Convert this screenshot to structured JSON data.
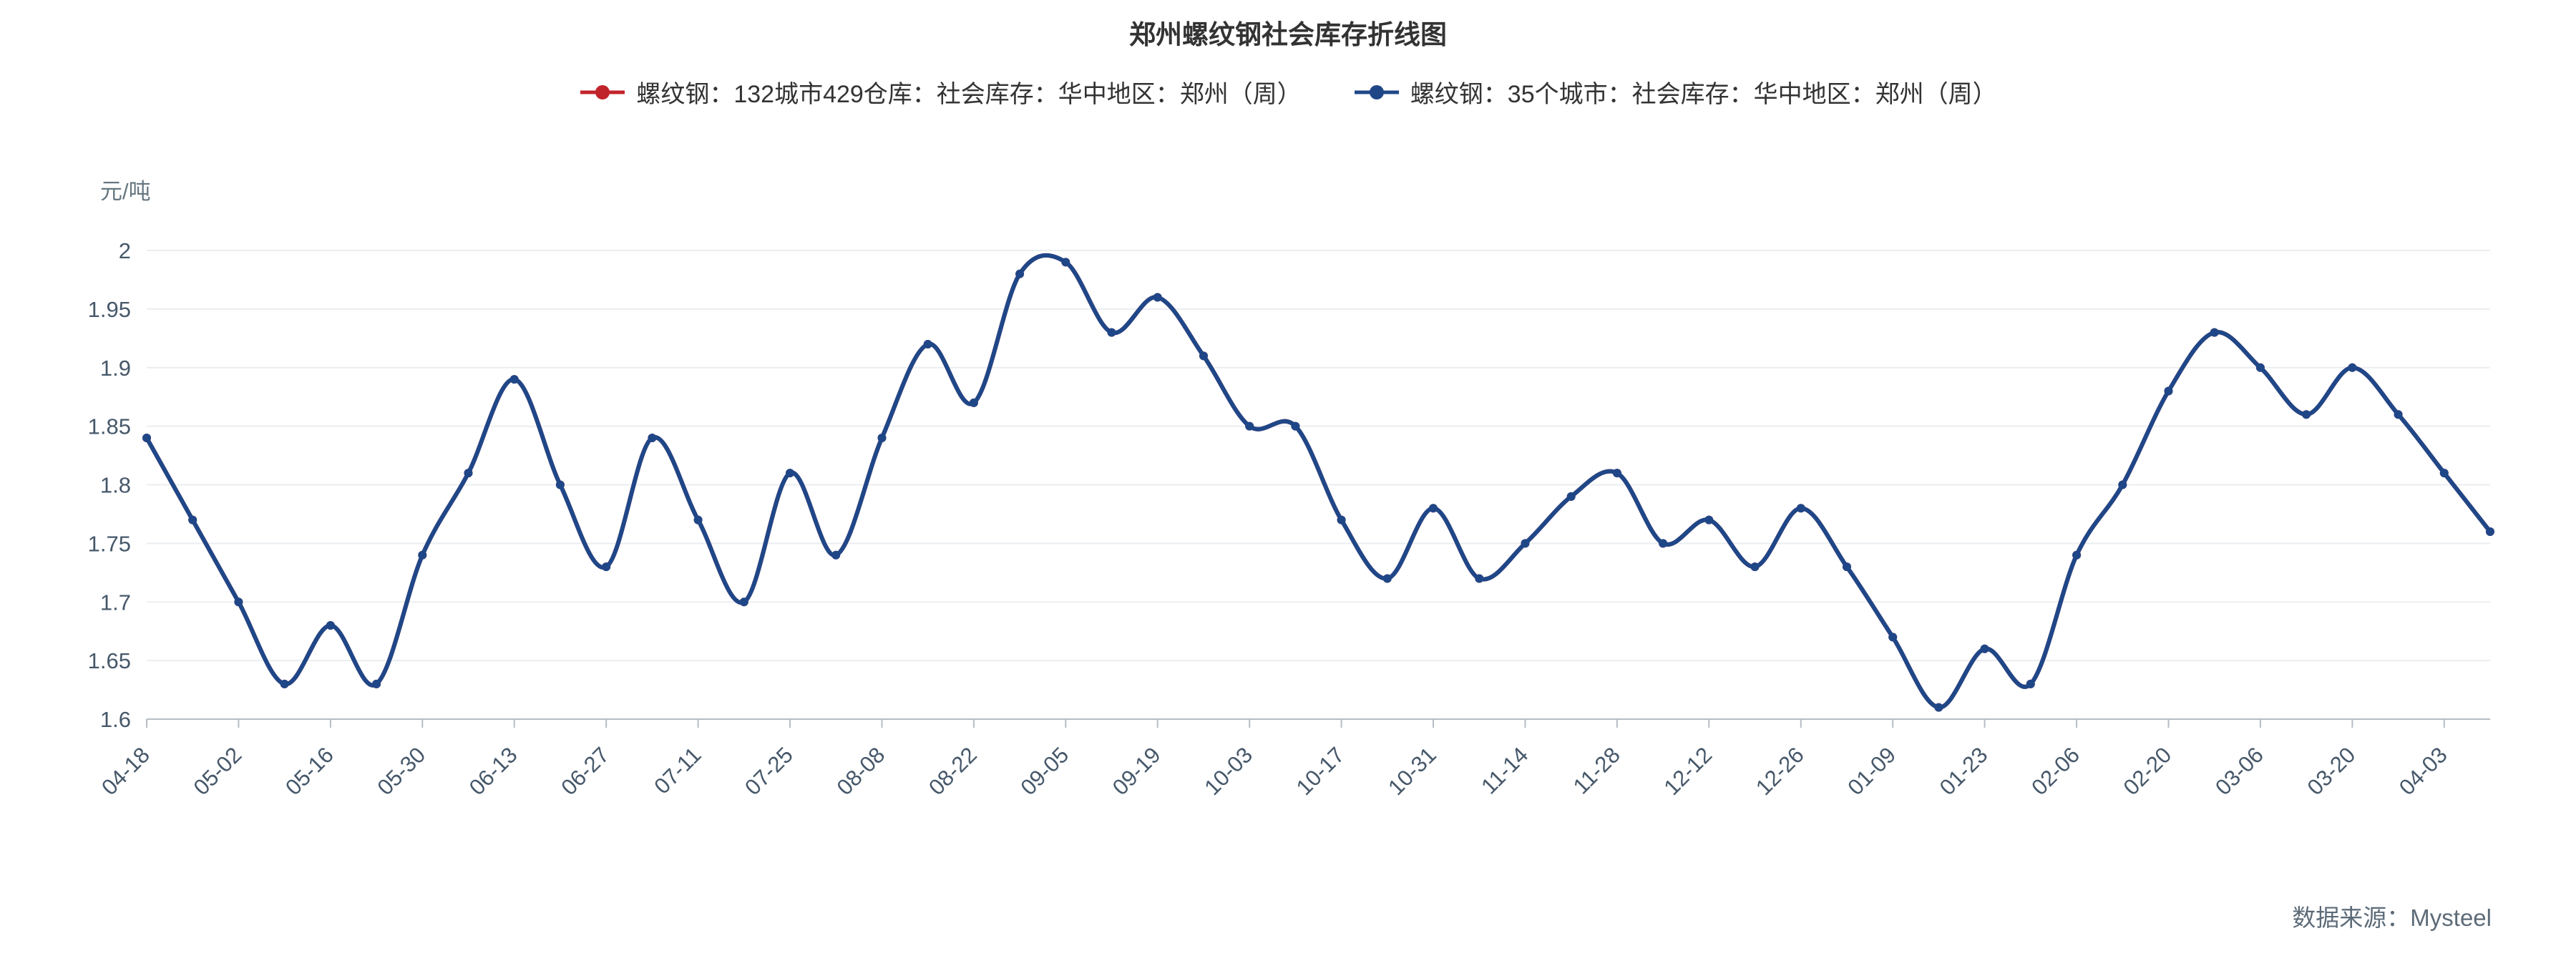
{
  "header": {
    "title": "郑州螺纹钢社会库存折线图"
  },
  "footer": {
    "source": "数据来源：Mysteel"
  },
  "chart_data": {
    "type": "line",
    "title": "郑州螺纹钢社会库存折线图",
    "y_unit": "元/吨",
    "ylim": [
      1.6,
      2.0
    ],
    "y_ticks": [
      1.6,
      1.65,
      1.7,
      1.75,
      1.8,
      1.85,
      1.9,
      1.95,
      2
    ],
    "x_tick_labels": [
      "04-18",
      "05-02",
      "05-16",
      "05-30",
      "06-13",
      "06-27",
      "07-11",
      "07-25",
      "08-08",
      "08-22",
      "09-05",
      "09-19",
      "10-03",
      "10-17",
      "10-31",
      "11-14",
      "11-28",
      "12-12",
      "12-26",
      "01-09",
      "01-23",
      "02-06",
      "02-20",
      "03-06",
      "03-20",
      "04-03"
    ],
    "tick_every": 2,
    "smooth": true,
    "grid": true,
    "legend_position": "top",
    "series": [
      {
        "name": "螺纹钢：132城市429仓库：社会库存：华中地区：郑州（周）",
        "color": "#c1232b",
        "values": [
          1.84,
          1.77,
          1.7,
          1.63,
          1.68,
          1.63,
          1.74,
          1.81,
          1.89,
          1.8,
          1.73,
          1.84,
          1.77,
          1.7,
          1.81,
          1.74,
          1.84,
          1.92,
          1.87,
          1.98,
          1.99,
          1.93,
          1.96,
          1.91,
          1.85,
          1.85,
          1.77,
          1.72,
          1.78,
          1.72,
          1.75,
          1.79,
          1.81,
          1.75,
          1.77,
          1.73,
          1.78,
          1.73,
          1.67,
          1.61,
          1.66,
          1.63,
          1.74,
          1.8,
          1.88,
          1.93,
          1.9,
          1.86,
          1.9,
          1.86,
          1.81,
          1.76
        ]
      },
      {
        "name": "螺纹钢：35个城市：社会库存：华中地区：郑州（周）",
        "color": "#1f4788",
        "values": [
          1.84,
          1.77,
          1.7,
          1.63,
          1.68,
          1.63,
          1.74,
          1.81,
          1.89,
          1.8,
          1.73,
          1.84,
          1.77,
          1.7,
          1.81,
          1.74,
          1.84,
          1.92,
          1.87,
          1.98,
          1.99,
          1.93,
          1.96,
          1.91,
          1.85,
          1.85,
          1.77,
          1.72,
          1.78,
          1.72,
          1.75,
          1.79,
          1.81,
          1.75,
          1.77,
          1.73,
          1.78,
          1.73,
          1.67,
          1.61,
          1.66,
          1.63,
          1.74,
          1.8,
          1.88,
          1.93,
          1.9,
          1.86,
          1.9,
          1.86,
          1.81,
          1.76
        ]
      }
    ]
  }
}
